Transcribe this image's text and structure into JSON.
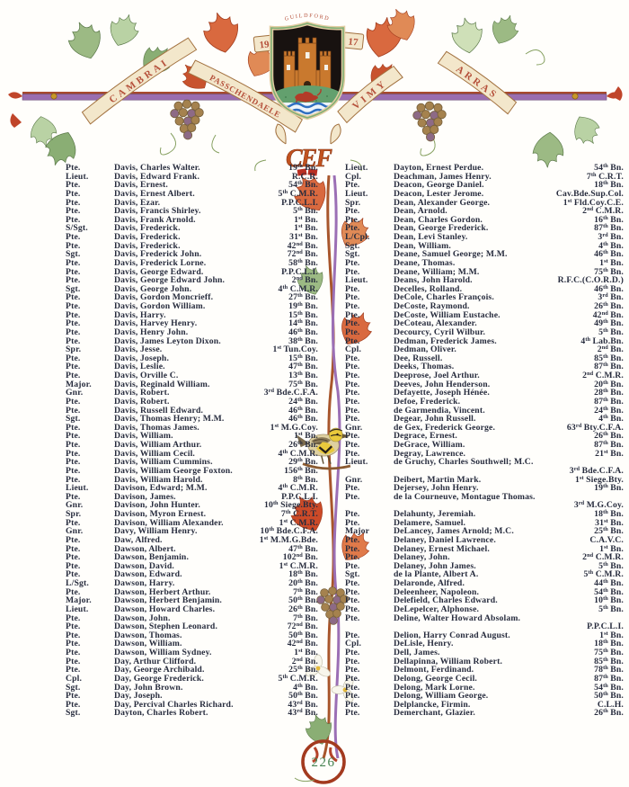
{
  "header": {
    "crest_city": "GUILDFORD",
    "year": [
      "19",
      "17"
    ],
    "battle_banners": [
      "CAMBRAI",
      "PASSCHENDAELE",
      "VIMY",
      "ARRAS"
    ],
    "monogram": "CEF"
  },
  "page_number": "226",
  "roll": {
    "left": [
      {
        "rank": "Pte.",
        "name": "Davis, Charles Walter.",
        "unit": "19th Bn."
      },
      {
        "rank": "Lieut.",
        "name": "Davis, Edward Frank.",
        "unit": "R.C.R."
      },
      {
        "rank": "Pte.",
        "name": "Davis, Ernest.",
        "unit": "54th Bn."
      },
      {
        "rank": "Pte.",
        "name": "Davis, Ernest Albert.",
        "unit": "5th C.M.R."
      },
      {
        "rank": "Pte.",
        "name": "Davis, Ezar.",
        "unit": "P.P.C.L.I."
      },
      {
        "rank": "Pte.",
        "name": "Davis, Francis Shirley.",
        "unit": "5th Bn."
      },
      {
        "rank": "Pte.",
        "name": "Davis, Frank Arnold.",
        "unit": "1st Bn."
      },
      {
        "rank": "S/Sgt.",
        "name": "Davis, Frederick.",
        "unit": "1st Bn."
      },
      {
        "rank": "Pte.",
        "name": "Davis, Frederick.",
        "unit": "31st Bn."
      },
      {
        "rank": "Pte.",
        "name": "Davis, Frederick.",
        "unit": "42nd Bn."
      },
      {
        "rank": "Sgt.",
        "name": "Davis, Frederick John.",
        "unit": "72nd Bn."
      },
      {
        "rank": "Pte.",
        "name": "Davis, Frederick Lorne.",
        "unit": "58th Bn."
      },
      {
        "rank": "Pte.",
        "name": "Davis, George Edward.",
        "unit": "P.P.C.L.I."
      },
      {
        "rank": "Pte.",
        "name": "Davis, George Edward John.",
        "unit": "2nd Bn."
      },
      {
        "rank": "Sgt.",
        "name": "Davis, George John.",
        "unit": "4th C.M.R."
      },
      {
        "rank": "Pte.",
        "name": "Davis, Gordon Moncrieff.",
        "unit": "27th Bn."
      },
      {
        "rank": "Pte.",
        "name": "Davis, Gordon William.",
        "unit": "19th Bn."
      },
      {
        "rank": "Pte.",
        "name": "Davis, Harry.",
        "unit": "15th Bn."
      },
      {
        "rank": "Pte.",
        "name": "Davis, Harvey Henry.",
        "unit": "14th Bn."
      },
      {
        "rank": "Pte.",
        "name": "Davis, Henry John.",
        "unit": "46th Bn."
      },
      {
        "rank": "Pte.",
        "name": "Davis, James Leyton Dixon.",
        "unit": "38th Bn."
      },
      {
        "rank": "Spr.",
        "name": "Davis, Jesse.",
        "unit": "1st Tun.Coy."
      },
      {
        "rank": "Pte.",
        "name": "Davis, Joseph.",
        "unit": "15th Bn."
      },
      {
        "rank": "Pte.",
        "name": "Davis, Leslie.",
        "unit": "47th Bn."
      },
      {
        "rank": "Pte.",
        "name": "Davis, Orville C.",
        "unit": "13th Bn."
      },
      {
        "rank": "Major.",
        "name": "Davis, Reginald William.",
        "unit": "75th Bn."
      },
      {
        "rank": "Gnr.",
        "name": "Davis, Robert.",
        "unit": "3rd Bde.C.F.A."
      },
      {
        "rank": "Pte.",
        "name": "Davis, Robert.",
        "unit": "24th Bn."
      },
      {
        "rank": "Pte.",
        "name": "Davis, Russell Edward.",
        "unit": "46th Bn."
      },
      {
        "rank": "Sgt.",
        "name": "Davis, Thomas Henry; M.M.",
        "unit": "46th Bn."
      },
      {
        "rank": "Pte.",
        "name": "Davis, Thomas James.",
        "unit": "1st M.G.Coy."
      },
      {
        "rank": "Pte.",
        "name": "Davis, William.",
        "unit": "1st Bn."
      },
      {
        "rank": "Pte.",
        "name": "Davis, William Arthur.",
        "unit": "26th Bn."
      },
      {
        "rank": "Pte.",
        "name": "Davis, William Cecil.",
        "unit": "4th C.M.R."
      },
      {
        "rank": "Pte.",
        "name": "Davis, William Cummins.",
        "unit": "29th Bn."
      },
      {
        "rank": "Pte.",
        "name": "Davis, William George Foxton.",
        "unit": "156th Bn."
      },
      {
        "rank": "Pte.",
        "name": "Davis, William Harold.",
        "unit": "8th Bn."
      },
      {
        "rank": "Lieut.",
        "name": "Davison, Edward; M.M.",
        "unit": "4th C.M.R."
      },
      {
        "rank": "Pte.",
        "name": "Davison, James.",
        "unit": "P.P.C.L.I."
      },
      {
        "rank": "Gnr.",
        "name": "Davison, John Hunter.",
        "unit": "10th Siege.Bty."
      },
      {
        "rank": "Spr.",
        "name": "Davison, Myron Ernest.",
        "unit": "7th C.R.T."
      },
      {
        "rank": "Pte.",
        "name": "Davison, William Alexander.",
        "unit": "1st C.M.R."
      },
      {
        "rank": "Gnr.",
        "name": "Davy, William Henry.",
        "unit": "10th Bde.C.F.A."
      },
      {
        "rank": "Pte.",
        "name": "Daw, Alfred.",
        "unit": "1st M.M.G.Bde."
      },
      {
        "rank": "Pte.",
        "name": "Dawson, Albert.",
        "unit": "47th Bn."
      },
      {
        "rank": "Pte.",
        "name": "Dawson, Benjamin.",
        "unit": "102nd Bn."
      },
      {
        "rank": "Pte.",
        "name": "Dawson, David.",
        "unit": "1st C.M.R."
      },
      {
        "rank": "Pte.",
        "name": "Dawson, Edward.",
        "unit": "18th Bn."
      },
      {
        "rank": "L/Sgt.",
        "name": "Dawson, Harry.",
        "unit": "20th Bn."
      },
      {
        "rank": "Pte.",
        "name": "Dawson, Herbert Arthur.",
        "unit": "7th Bn."
      },
      {
        "rank": "Major.",
        "name": "Dawson, Herbert Benjamin.",
        "unit": "50th Bn."
      },
      {
        "rank": "Lieut.",
        "name": "Dawson, Howard Charles.",
        "unit": "26th Bn."
      },
      {
        "rank": "Pte.",
        "name": "Dawson, John.",
        "unit": "7th Bn."
      },
      {
        "rank": "Pte.",
        "name": "Dawson, Stephen Leonard.",
        "unit": "72nd Bn."
      },
      {
        "rank": "Pte.",
        "name": "Dawson, Thomas.",
        "unit": "50th Bn."
      },
      {
        "rank": "Pte.",
        "name": "Dawson, William.",
        "unit": "42nd Bn."
      },
      {
        "rank": "Pte.",
        "name": "Dawson, William Sydney.",
        "unit": "1st Bn."
      },
      {
        "rank": "Pte.",
        "name": "Day, Arthur Clifford.",
        "unit": "2nd Bn."
      },
      {
        "rank": "Pte.",
        "name": "Day, George Archibald.",
        "unit": "25th Bn."
      },
      {
        "rank": "Cpl.",
        "name": "Day, George Frederick.",
        "unit": "5th C.M.R."
      },
      {
        "rank": "Sgt.",
        "name": "Day, John Brown.",
        "unit": "4th Bn."
      },
      {
        "rank": "Pte.",
        "name": "Day, Joseph.",
        "unit": "50th Bn."
      },
      {
        "rank": "Pte.",
        "name": "Day, Percival Charles Richard.",
        "unit": "43rd Bn."
      },
      {
        "rank": "Sgt.",
        "name": "Dayton, Charles Robert.",
        "unit": "43rd Bn."
      }
    ],
    "right": [
      {
        "rank": "Lieut.",
        "name": "Dayton, Ernest Perdue.",
        "unit": "54th Bn."
      },
      {
        "rank": "Cpl.",
        "name": "Deachman, James Henry.",
        "unit": "7th C.R.T."
      },
      {
        "rank": "Pte.",
        "name": "Deacon, George Daniel.",
        "unit": "18th Bn."
      },
      {
        "rank": "Lieut.",
        "name": "Deacon, Lester Jerome.",
        "unit": "Cav.Bde.Sup.Col."
      },
      {
        "rank": "Spr.",
        "name": "Dean, Alexander George.",
        "unit": "1st Fld.Coy.C.E."
      },
      {
        "rank": "Pte.",
        "name": "Dean, Arnold.",
        "unit": "2nd C.M.R."
      },
      {
        "rank": "Pte.",
        "name": "Dean, Charles Gordon.",
        "unit": "16th Bn."
      },
      {
        "rank": "Pte.",
        "name": "Dean, George Frederick.",
        "unit": "87th Bn."
      },
      {
        "rank": "L/Cpl.",
        "name": "Dean, Levi Stanley.",
        "unit": "3rd Bn."
      },
      {
        "rank": "Sgt.",
        "name": "Dean, William.",
        "unit": "4th Bn."
      },
      {
        "rank": "Sgt.",
        "name": "Deane, Samuel George; M.M.",
        "unit": "46th Bn."
      },
      {
        "rank": "Pte.",
        "name": "Deane, Thomas.",
        "unit": "1st Bn."
      },
      {
        "rank": "Pte.",
        "name": "Deane, William; M.M.",
        "unit": "75th Bn."
      },
      {
        "rank": "Lieut.",
        "name": "Deans, John Harold.",
        "unit": "R.F.C.(C.O.R.D.)"
      },
      {
        "rank": "Pte.",
        "name": "Decelles, Rolland.",
        "unit": "46th Bn."
      },
      {
        "rank": "Pte.",
        "name": "DeCole, Charles François.",
        "unit": "3rd Bn."
      },
      {
        "rank": "Pte.",
        "name": "DeCoste, Raymond.",
        "unit": "26th Bn."
      },
      {
        "rank": "Pte.",
        "name": "DeCoste, William Eustache.",
        "unit": "42nd Bn."
      },
      {
        "rank": "Pte.",
        "name": "DeCoteau, Alexander.",
        "unit": "49th Bn."
      },
      {
        "rank": "Pte.",
        "name": "Decourcy, Cyril Wilbur.",
        "unit": "5th Bn."
      },
      {
        "rank": "Pte.",
        "name": "Dedman, Frederick James.",
        "unit": "4th Lab.Bn."
      },
      {
        "rank": "Cpl.",
        "name": "Dedman, Oliver.",
        "unit": "2nd Bn."
      },
      {
        "rank": "Pte.",
        "name": "Dee, Russell.",
        "unit": "85th Bn."
      },
      {
        "rank": "Pte.",
        "name": "Deeks, Thomas.",
        "unit": "87th Bn."
      },
      {
        "rank": "Pte.",
        "name": "Deeprose, Joel Arthur.",
        "unit": "2nd C.M.R."
      },
      {
        "rank": "Pte.",
        "name": "Deeves, John Henderson.",
        "unit": "20th Bn."
      },
      {
        "rank": "Pte.",
        "name": "Defayette, Joseph Hénée.",
        "unit": "28th Bn."
      },
      {
        "rank": "Pte.",
        "name": "Defoe, Frederick.",
        "unit": "87th Bn."
      },
      {
        "rank": "Pte.",
        "name": "de Garmendia, Vincent.",
        "unit": "24th Bn."
      },
      {
        "rank": "Pte.",
        "name": "Degear, John Russell.",
        "unit": "4th Bn."
      },
      {
        "rank": "Gnr.",
        "name": "de Gex, Frederick George.",
        "unit": "63rd Bty.C.F.A."
      },
      {
        "rank": "Pte.",
        "name": "Degrace, Ernest.",
        "unit": "26th Bn."
      },
      {
        "rank": "Pte.",
        "name": "DeGrace, William.",
        "unit": "87th Bn."
      },
      {
        "rank": "Pte.",
        "name": "Degray, Lawrence.",
        "unit": "21st Bn."
      },
      {
        "rank": "Lieut.",
        "name": "de Gruchy, Charles Southwell; M.C.",
        "unit": "3rd Bde.C.F.A.",
        "wrap": true
      },
      {
        "rank": "Gnr.",
        "name": "Deibert, Martin Mark.",
        "unit": "1st Siege.Bty."
      },
      {
        "rank": "Pte.",
        "name": "Dejersey, John Henry.",
        "unit": "19th Bn."
      },
      {
        "rank": "Pte.",
        "name": "de la Courneuve, Montague Thomas.",
        "unit": "3rd M.G.Coy.",
        "wrap": true
      },
      {
        "rank": "Pte.",
        "name": "Delahunty, Jeremiah.",
        "unit": "18th Bn."
      },
      {
        "rank": "Pte.",
        "name": "Delamere, Samuel.",
        "unit": "31st Bn."
      },
      {
        "rank": "Major",
        "name": "DeLancey, James Arnold; M.C.",
        "unit": "25th Bn."
      },
      {
        "rank": "Pte.",
        "name": "Delaney, Daniel Lawrence.",
        "unit": "C.A.V.C."
      },
      {
        "rank": "Pte.",
        "name": "Delaney, Ernest Michael.",
        "unit": "1st Bn."
      },
      {
        "rank": "Pte.",
        "name": "Delaney, John.",
        "unit": "2nd C.M.R."
      },
      {
        "rank": "Pte.",
        "name": "Delaney, John James.",
        "unit": "5th Bn."
      },
      {
        "rank": "Sgt.",
        "name": "de la Plante, Albert A.",
        "unit": "5th C.M.R."
      },
      {
        "rank": "Pte.",
        "name": "Delaronde, Alfred.",
        "unit": "44th Bn."
      },
      {
        "rank": "Pte.",
        "name": "Deleenheer, Napoleon.",
        "unit": "54th Bn."
      },
      {
        "rank": "Pte.",
        "name": "Delefield, Charles Edward.",
        "unit": "10th Bn."
      },
      {
        "rank": "Pte.",
        "name": "DeLepelcer, Alphonse.",
        "unit": "5th Bn."
      },
      {
        "rank": "Pte.",
        "name": "Deline, Walter Howard Absolam.",
        "unit": "P.P.C.L.I.",
        "wrap": true
      },
      {
        "rank": "Pte.",
        "name": "Delion, Harry Conrad August.",
        "unit": "1st Bn."
      },
      {
        "rank": "Cpl.",
        "name": "DeLisle, Henry.",
        "unit": "18th Bn."
      },
      {
        "rank": "Pte.",
        "name": "Dell, James.",
        "unit": "75th Bn."
      },
      {
        "rank": "Pte.",
        "name": "Dellapinna, William Robert.",
        "unit": "85th Bn."
      },
      {
        "rank": "Pte.",
        "name": "Delmont, Ferdinand.",
        "unit": "78th Bn."
      },
      {
        "rank": "Pte.",
        "name": "Delong, George Cecil.",
        "unit": "87th Bn."
      },
      {
        "rank": "Pte.",
        "name": "Delong, Mark Lorne.",
        "unit": "54th Bn."
      },
      {
        "rank": "Pte.",
        "name": "Delong, William George.",
        "unit": "50th Bn."
      },
      {
        "rank": "Pte.",
        "name": "Delplancke, Firmin.",
        "unit": "C.L.H."
      },
      {
        "rank": "Pte.",
        "name": "Demerchant, Glazier.",
        "unit": "26th Bn."
      }
    ]
  }
}
